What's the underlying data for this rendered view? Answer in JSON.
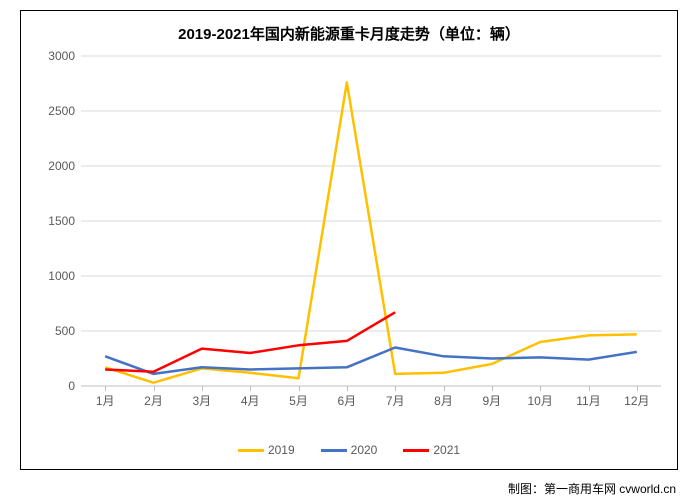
{
  "chart": {
    "type": "line",
    "title": "2019-2021年国内新能源重卡月度走势（单位：辆）",
    "title_fontsize": 15,
    "background_color": "#ffffff",
    "border_color": "#000000",
    "grid_color": "#d9d9d9",
    "axis_line_color": "#bfbfbf",
    "tick_label_color": "#595959",
    "tick_fontsize": 12,
    "x_categories": [
      "1月",
      "2月",
      "3月",
      "4月",
      "5月",
      "6月",
      "7月",
      "8月",
      "9月",
      "10月",
      "11月",
      "12月"
    ],
    "y": {
      "min": 0,
      "max": 3000,
      "step": 500
    },
    "line_width": 2.5,
    "series": [
      {
        "name": "2019",
        "color": "#ffc000",
        "values": [
          170,
          30,
          160,
          120,
          70,
          2760,
          110,
          120,
          200,
          400,
          460,
          470
        ]
      },
      {
        "name": "2020",
        "color": "#4472c4",
        "values": [
          270,
          110,
          170,
          150,
          160,
          170,
          350,
          270,
          250,
          260,
          240,
          310
        ]
      },
      {
        "name": "2021",
        "color": "#ff0000",
        "values": [
          150,
          130,
          340,
          300,
          370,
          410,
          670
        ]
      }
    ]
  },
  "credit": "制图：第一商用车网 cvworld.cn"
}
